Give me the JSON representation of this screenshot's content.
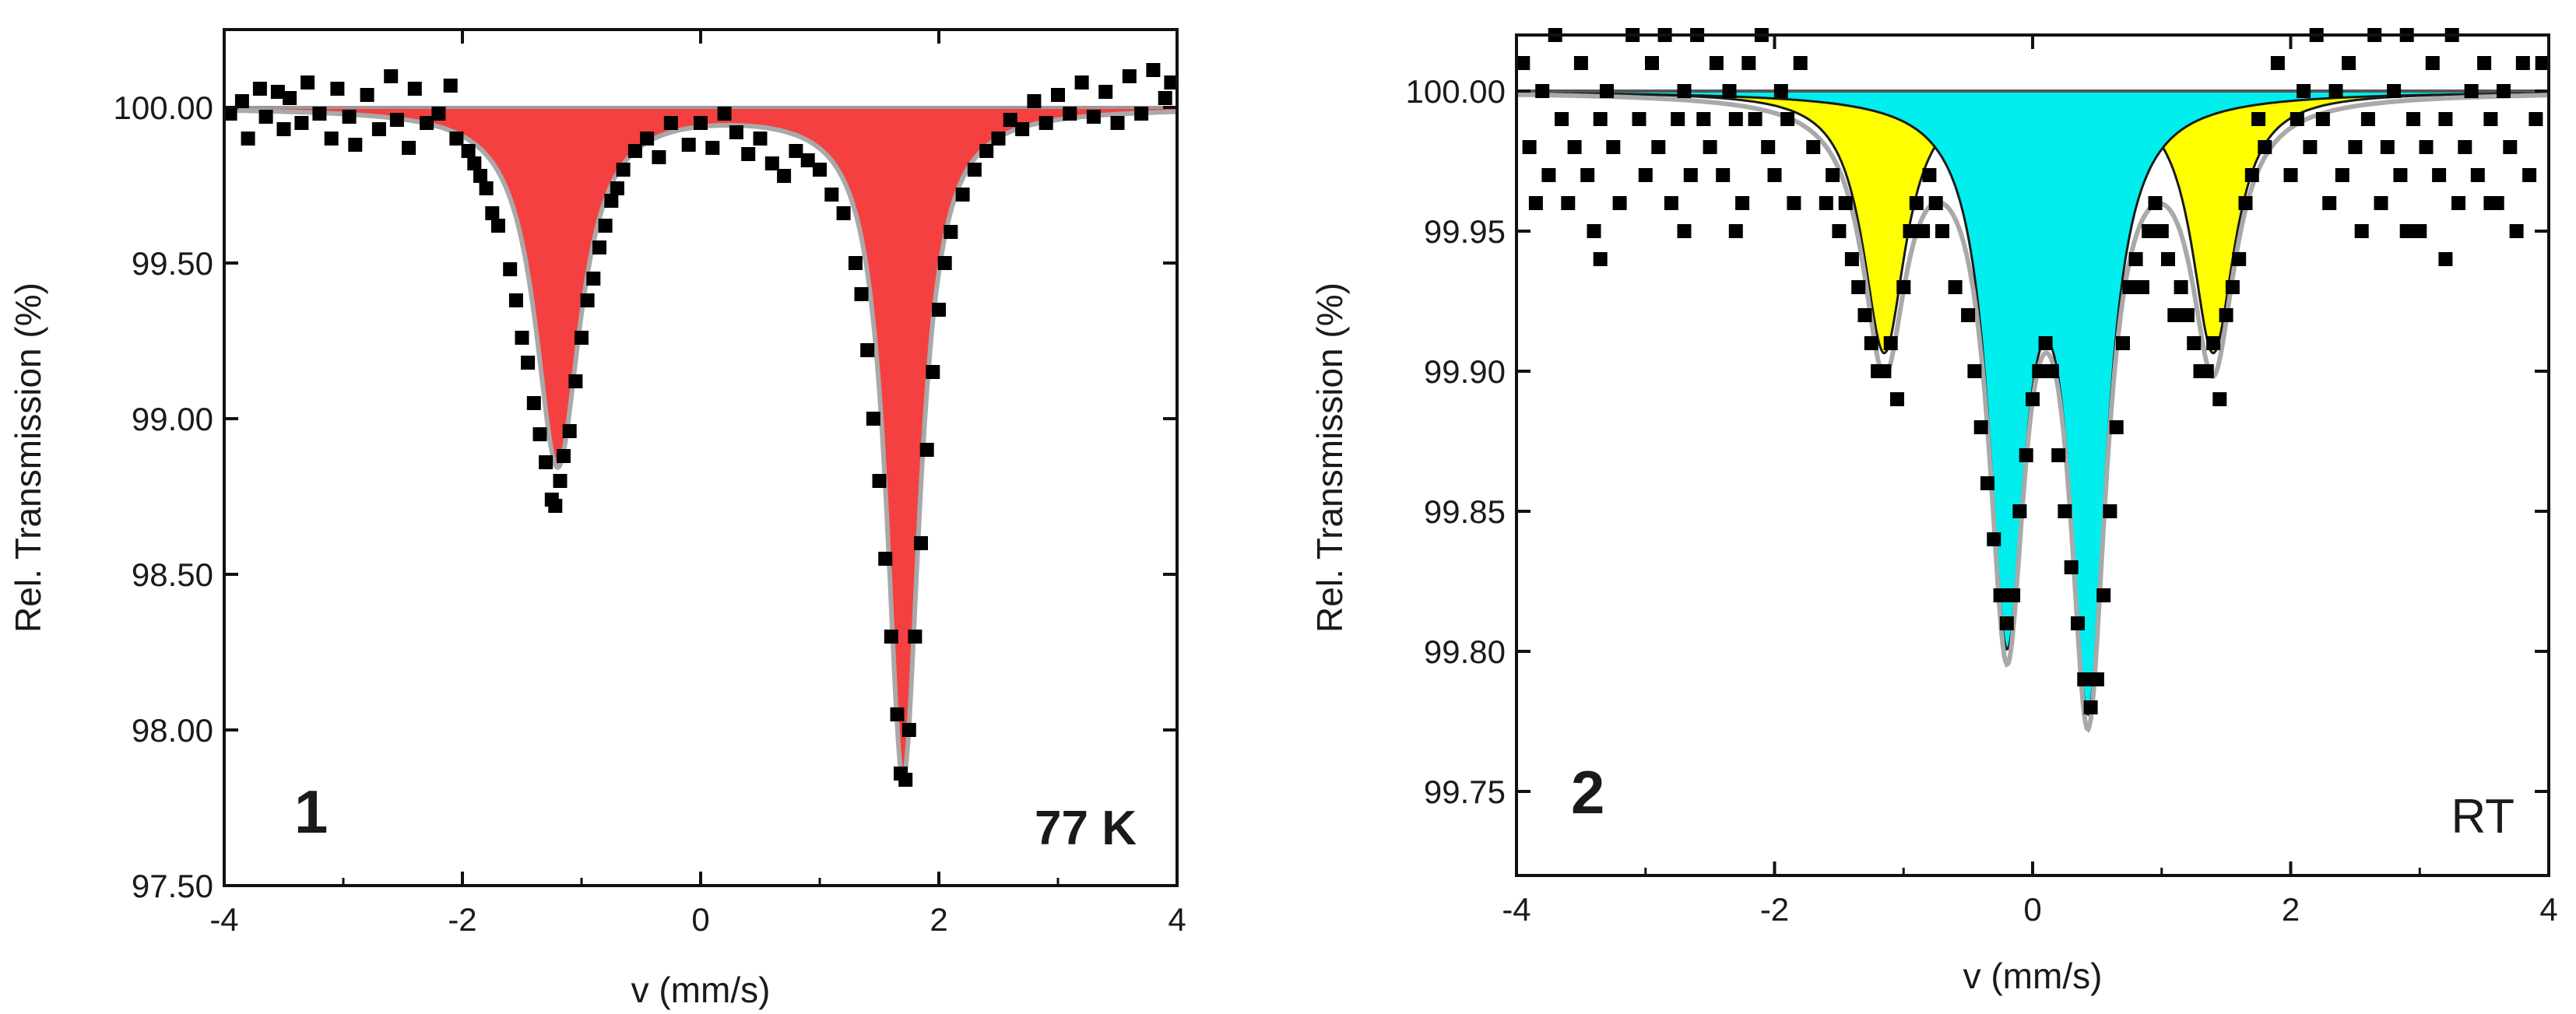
{
  "chart_data": [
    {
      "type": "scatter",
      "panel_label": "1",
      "annotation": "77 K",
      "xlabel": "v (mm/s)",
      "ylabel": "Rel. Transmission (%)",
      "xlim": [
        -4,
        4
      ],
      "ylim": [
        97.5,
        100.25
      ],
      "xticks": [
        "-4",
        "-2",
        "0",
        "2",
        "4"
      ],
      "yticks": [
        "100.00",
        "99.50",
        "99.00",
        "98.50",
        "98.00",
        "97.50"
      ],
      "ytick_values": [
        100.0,
        99.5,
        99.0,
        98.5,
        98.0,
        97.5
      ],
      "grid": false,
      "colors": {
        "component": "#f44040",
        "fit_line": "#a9a9a9",
        "points": "#000000",
        "baseline": "#9a9a9a"
      },
      "series": [
        {
          "kind": "fitted_component",
          "lineshape": "lorentzian",
          "peaks": [
            {
              "position": -1.2,
              "depth": 1.15,
              "hwhm": 0.23
            },
            {
              "position": 1.7,
              "depth": 2.15,
              "hwhm": 0.17
            }
          ]
        }
      ],
      "data_points": [
        [
          -3.95,
          99.98
        ],
        [
          -3.85,
          100.02
        ],
        [
          -3.8,
          99.9
        ],
        [
          -3.7,
          100.06
        ],
        [
          -3.65,
          99.97
        ],
        [
          -3.55,
          100.05
        ],
        [
          -3.5,
          99.93
        ],
        [
          -3.45,
          100.03
        ],
        [
          -3.35,
          99.95
        ],
        [
          -3.3,
          100.08
        ],
        [
          -3.2,
          99.98
        ],
        [
          -3.1,
          99.9
        ],
        [
          -3.05,
          100.06
        ],
        [
          -2.95,
          99.97
        ],
        [
          -2.9,
          99.88
        ],
        [
          -2.8,
          100.04
        ],
        [
          -2.7,
          99.93
        ],
        [
          -2.6,
          100.1
        ],
        [
          -2.55,
          99.96
        ],
        [
          -2.45,
          99.87
        ],
        [
          -2.4,
          100.06
        ],
        [
          -2.3,
          99.95
        ],
        [
          -2.2,
          99.98
        ],
        [
          -2.1,
          100.07
        ],
        [
          -2.05,
          99.9
        ],
        [
          -1.95,
          99.86
        ],
        [
          -1.9,
          99.82
        ],
        [
          -1.85,
          99.78
        ],
        [
          -1.8,
          99.74
        ],
        [
          -1.75,
          99.66
        ],
        [
          -1.7,
          99.62
        ],
        [
          -1.6,
          99.48
        ],
        [
          -1.55,
          99.38
        ],
        [
          -1.5,
          99.26
        ],
        [
          -1.45,
          99.18
        ],
        [
          -1.4,
          99.05
        ],
        [
          -1.35,
          98.95
        ],
        [
          -1.3,
          98.86
        ],
        [
          -1.25,
          98.74
        ],
        [
          -1.22,
          98.72
        ],
        [
          -1.18,
          98.8
        ],
        [
          -1.15,
          98.88
        ],
        [
          -1.1,
          98.96
        ],
        [
          -1.05,
          99.12
        ],
        [
          -1.0,
          99.26
        ],
        [
          -0.95,
          99.38
        ],
        [
          -0.9,
          99.45
        ],
        [
          -0.85,
          99.55
        ],
        [
          -0.8,
          99.62
        ],
        [
          -0.75,
          99.7
        ],
        [
          -0.7,
          99.74
        ],
        [
          -0.65,
          99.8
        ],
        [
          -0.55,
          99.86
        ],
        [
          -0.45,
          99.9
        ],
        [
          -0.35,
          99.84
        ],
        [
          -0.25,
          99.95
        ],
        [
          -0.1,
          99.88
        ],
        [
          0.0,
          99.95
        ],
        [
          0.1,
          99.87
        ],
        [
          0.2,
          99.98
        ],
        [
          0.3,
          99.92
        ],
        [
          0.4,
          99.85
        ],
        [
          0.5,
          99.9
        ],
        [
          0.6,
          99.82
        ],
        [
          0.7,
          99.78
        ],
        [
          0.8,
          99.86
        ],
        [
          0.9,
          99.83
        ],
        [
          1.0,
          99.8
        ],
        [
          1.1,
          99.72
        ],
        [
          1.2,
          99.66
        ],
        [
          1.3,
          99.5
        ],
        [
          1.35,
          99.4
        ],
        [
          1.4,
          99.22
        ],
        [
          1.45,
          99.0
        ],
        [
          1.5,
          98.8
        ],
        [
          1.55,
          98.55
        ],
        [
          1.6,
          98.3
        ],
        [
          1.65,
          98.05
        ],
        [
          1.68,
          97.86
        ],
        [
          1.72,
          97.84
        ],
        [
          1.75,
          98.0
        ],
        [
          1.8,
          98.3
        ],
        [
          1.85,
          98.6
        ],
        [
          1.9,
          98.9
        ],
        [
          1.95,
          99.15
        ],
        [
          2.0,
          99.35
        ],
        [
          2.05,
          99.5
        ],
        [
          2.1,
          99.6
        ],
        [
          2.2,
          99.72
        ],
        [
          2.3,
          99.8
        ],
        [
          2.4,
          99.86
        ],
        [
          2.5,
          99.9
        ],
        [
          2.6,
          99.96
        ],
        [
          2.7,
          99.93
        ],
        [
          2.8,
          100.02
        ],
        [
          2.9,
          99.95
        ],
        [
          3.0,
          100.04
        ],
        [
          3.1,
          99.98
        ],
        [
          3.2,
          100.08
        ],
        [
          3.3,
          99.97
        ],
        [
          3.4,
          100.05
        ],
        [
          3.5,
          99.95
        ],
        [
          3.6,
          100.1
        ],
        [
          3.7,
          99.98
        ],
        [
          3.8,
          100.12
        ],
        [
          3.9,
          100.03
        ],
        [
          3.95,
          100.08
        ]
      ]
    },
    {
      "type": "scatter",
      "panel_label": "2",
      "annotation": "RT",
      "xlabel": "v (mm/s)",
      "ylabel": "Rel. Transmission (%)",
      "xlim": [
        -4,
        4
      ],
      "ylim": [
        99.72,
        100.02
      ],
      "xticks": [
        "-4",
        "-2",
        "0",
        "2",
        "4"
      ],
      "yticks": [
        "100.00",
        "99.95",
        "99.90",
        "99.85",
        "99.80",
        "99.75"
      ],
      "ytick_values": [
        100.0,
        99.95,
        99.9,
        99.85,
        99.8,
        99.75
      ],
      "grid": false,
      "colors": {
        "component_1": "#ffff00",
        "component_2": "#00eeee",
        "fit_line": "#a9a9a9",
        "component_outline": "#1a1a1a",
        "points": "#000000",
        "baseline": "#555555"
      },
      "series": [
        {
          "kind": "fitted_component",
          "lineshape": "lorentzian",
          "peaks": [
            {
              "position": -1.15,
              "depth": 0.093,
              "hwhm": 0.2
            },
            {
              "position": 1.4,
              "depth": 0.093,
              "hwhm": 0.2
            }
          ]
        },
        {
          "kind": "fitted_component",
          "lineshape": "lorentzian",
          "peaks": [
            {
              "position": -0.2,
              "depth": 0.185,
              "hwhm": 0.17
            },
            {
              "position": 0.43,
              "depth": 0.21,
              "hwhm": 0.17
            }
          ]
        }
      ],
      "data_points": [
        [
          -3.95,
          100.01
        ],
        [
          -3.9,
          99.98
        ],
        [
          -3.85,
          99.96
        ],
        [
          -3.8,
          100.0
        ],
        [
          -3.75,
          99.97
        ],
        [
          -3.7,
          100.02
        ],
        [
          -3.65,
          99.99
        ],
        [
          -3.6,
          99.96
        ],
        [
          -3.55,
          99.98
        ],
        [
          -3.5,
          100.01
        ],
        [
          -3.45,
          99.97
        ],
        [
          -3.4,
          99.95
        ],
        [
          -3.35,
          99.99
        ],
        [
          -3.3,
          100.0
        ],
        [
          -3.25,
          99.98
        ],
        [
          -3.2,
          99.96
        ],
        [
          -3.1,
          100.02
        ],
        [
          -3.05,
          99.99
        ],
        [
          -3.0,
          99.97
        ],
        [
          -2.95,
          100.01
        ],
        [
          -2.9,
          99.98
        ],
        [
          -2.85,
          100.02
        ],
        [
          -2.8,
          99.96
        ],
        [
          -2.75,
          99.99
        ],
        [
          -2.7,
          100.0
        ],
        [
          -2.65,
          99.97
        ],
        [
          -2.6,
          100.02
        ],
        [
          -2.55,
          99.99
        ],
        [
          -2.5,
          99.98
        ],
        [
          -2.45,
          100.01
        ],
        [
          -2.4,
          99.97
        ],
        [
          -2.35,
          100.0
        ],
        [
          -2.3,
          99.99
        ],
        [
          -2.25,
          99.96
        ],
        [
          -2.2,
          100.01
        ],
        [
          -2.15,
          99.99
        ],
        [
          -2.1,
          100.02
        ],
        [
          -2.05,
          99.98
        ],
        [
          -2.0,
          99.97
        ],
        [
          -1.95,
          100.0
        ],
        [
          -1.9,
          99.99
        ],
        [
          -1.85,
          99.96
        ],
        [
          -1.8,
          100.01
        ],
        [
          -1.7,
          99.98
        ],
        [
          -1.6,
          99.96
        ],
        [
          -1.55,
          99.97
        ],
        [
          -1.5,
          99.95
        ],
        [
          -1.45,
          99.96
        ],
        [
          -1.4,
          99.94
        ],
        [
          -1.35,
          99.93
        ],
        [
          -1.3,
          99.92
        ],
        [
          -1.25,
          99.91
        ],
        [
          -1.2,
          99.9
        ],
        [
          -1.15,
          99.9
        ],
        [
          -1.1,
          99.91
        ],
        [
          -1.05,
          99.89
        ],
        [
          -1.0,
          99.93
        ],
        [
          -0.95,
          99.95
        ],
        [
          -0.9,
          99.96
        ],
        [
          -0.85,
          99.95
        ],
        [
          -0.8,
          99.97
        ],
        [
          -0.75,
          99.96
        ],
        [
          -0.7,
          99.95
        ],
        [
          -0.6,
          99.93
        ],
        [
          -0.5,
          99.92
        ],
        [
          -0.45,
          99.9
        ],
        [
          -0.4,
          99.88
        ],
        [
          -0.35,
          99.86
        ],
        [
          -0.3,
          99.84
        ],
        [
          -0.25,
          99.82
        ],
        [
          -0.2,
          99.81
        ],
        [
          -0.15,
          99.82
        ],
        [
          -0.1,
          99.85
        ],
        [
          -0.05,
          99.87
        ],
        [
          0.0,
          99.89
        ],
        [
          0.05,
          99.9
        ],
        [
          0.1,
          99.91
        ],
        [
          0.15,
          99.9
        ],
        [
          0.2,
          99.87
        ],
        [
          0.25,
          99.85
        ],
        [
          0.3,
          99.83
        ],
        [
          0.35,
          99.81
        ],
        [
          0.4,
          99.79
        ],
        [
          0.45,
          99.78
        ],
        [
          0.5,
          99.79
        ],
        [
          0.55,
          99.82
        ],
        [
          0.6,
          99.85
        ],
        [
          0.65,
          99.88
        ],
        [
          0.7,
          99.91
        ],
        [
          0.75,
          99.93
        ],
        [
          0.8,
          99.94
        ],
        [
          0.85,
          99.93
        ],
        [
          0.9,
          99.95
        ],
        [
          0.95,
          99.96
        ],
        [
          1.0,
          99.95
        ],
        [
          1.05,
          99.94
        ],
        [
          1.1,
          99.92
        ],
        [
          1.15,
          99.93
        ],
        [
          1.2,
          99.92
        ],
        [
          1.25,
          99.91
        ],
        [
          1.3,
          99.9
        ],
        [
          1.35,
          99.9
        ],
        [
          1.4,
          99.91
        ],
        [
          1.45,
          99.89
        ],
        [
          1.5,
          99.92
        ],
        [
          1.55,
          99.93
        ],
        [
          1.6,
          99.94
        ],
        [
          1.65,
          99.96
        ],
        [
          1.7,
          99.97
        ],
        [
          1.75,
          99.99
        ],
        [
          1.8,
          99.98
        ],
        [
          1.9,
          100.01
        ],
        [
          2.0,
          99.97
        ],
        [
          2.05,
          99.99
        ],
        [
          2.1,
          100.0
        ],
        [
          2.15,
          99.98
        ],
        [
          2.2,
          100.02
        ],
        [
          2.25,
          99.99
        ],
        [
          2.3,
          99.96
        ],
        [
          2.35,
          100.0
        ],
        [
          2.4,
          99.97
        ],
        [
          2.45,
          100.01
        ],
        [
          2.5,
          99.98
        ],
        [
          2.55,
          99.95
        ],
        [
          2.6,
          99.99
        ],
        [
          2.65,
          100.02
        ],
        [
          2.7,
          99.96
        ],
        [
          2.75,
          99.98
        ],
        [
          2.8,
          100.0
        ],
        [
          2.85,
          99.97
        ],
        [
          2.9,
          100.02
        ],
        [
          2.95,
          99.99
        ],
        [
          3.0,
          99.95
        ],
        [
          3.05,
          99.98
        ],
        [
          3.1,
          100.01
        ],
        [
          3.15,
          99.97
        ],
        [
          3.2,
          99.99
        ],
        [
          3.25,
          100.02
        ],
        [
          3.3,
          99.96
        ],
        [
          3.35,
          99.98
        ],
        [
          3.4,
          100.0
        ],
        [
          3.45,
          99.97
        ],
        [
          3.5,
          100.01
        ],
        [
          3.55,
          99.99
        ],
        [
          3.6,
          99.96
        ],
        [
          3.65,
          100.0
        ],
        [
          3.7,
          99.98
        ],
        [
          3.75,
          99.95
        ],
        [
          3.8,
          100.01
        ],
        [
          3.85,
          99.97
        ],
        [
          3.9,
          99.99
        ],
        [
          3.95,
          100.01
        ],
        [
          -2.3,
          99.95
        ],
        [
          -3.35,
          99.94
        ],
        [
          2.9,
          99.95
        ],
        [
          3.55,
          99.96
        ],
        [
          -2.7,
          99.95
        ],
        [
          3.2,
          99.94
        ]
      ]
    }
  ]
}
